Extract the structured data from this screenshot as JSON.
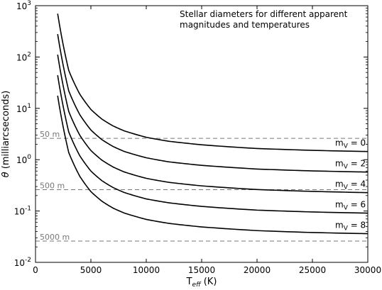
{
  "chart_data": {
    "type": "line",
    "title": "Stellar diameters for different apparent magnitudes and temperatures",
    "title_lines": [
      "Stellar diameters for different apparent",
      "magnitudes and temperatures"
    ],
    "xlabel": "T_eff (K)",
    "ylabel": "θ (milliarcseconds)",
    "xlim": [
      0,
      30000
    ],
    "ylim": [
      0.01,
      1000
    ],
    "yscale": "log",
    "grid": false,
    "legend": "none",
    "x_ticks": [
      0,
      5000,
      10000,
      15000,
      20000,
      25000,
      30000
    ],
    "y_ticks": [
      {
        "value": 0.01,
        "base": "10",
        "exp": "-2"
      },
      {
        "value": 0.1,
        "base": "10",
        "exp": "-1"
      },
      {
        "value": 1,
        "base": "10",
        "exp": "0"
      },
      {
        "value": 10,
        "base": "10",
        "exp": "1"
      },
      {
        "value": 100,
        "base": "10",
        "exp": "2"
      },
      {
        "value": 1000,
        "base": "10",
        "exp": "3"
      }
    ],
    "series": [
      {
        "name": "mV = 0",
        "label_main": "m",
        "label_sub": "V",
        "label_rest": " = 0",
        "mag": 0,
        "x": [
          2000,
          3000,
          4000,
          5000,
          6000,
          7000,
          8000,
          10000,
          12000,
          15000,
          20000,
          25000,
          30000
        ],
        "y": [
          700,
          55,
          18.9,
          9.53,
          6.16,
          4.55,
          3.65,
          2.73,
          2.29,
          1.95,
          1.65,
          1.52,
          1.44
        ]
      },
      {
        "name": "mV = 2",
        "label_main": "m",
        "label_sub": "V",
        "label_rest": " = 2",
        "mag": 2,
        "x": [
          2000,
          3000,
          4000,
          5000,
          6000,
          7000,
          8000,
          10000,
          12000,
          15000,
          20000,
          25000,
          30000
        ],
        "y": [
          279,
          21.9,
          7.52,
          3.79,
          2.45,
          1.81,
          1.45,
          1.09,
          0.91,
          0.776,
          0.657,
          0.604,
          0.574
        ]
      },
      {
        "name": "mV = 4",
        "label_main": "m",
        "label_sub": "V",
        "label_rest": " = 4",
        "mag": 4,
        "x": [
          2000,
          3000,
          4000,
          5000,
          6000,
          7000,
          8000,
          10000,
          12000,
          15000,
          20000,
          25000,
          30000
        ],
        "y": [
          111,
          8.72,
          2.99,
          1.51,
          0.977,
          0.721,
          0.578,
          0.433,
          0.363,
          0.309,
          0.262,
          0.241,
          0.228
        ]
      },
      {
        "name": "mV = 6",
        "label_main": "m",
        "label_sub": "V",
        "label_rest": " = 6",
        "mag": 6,
        "x": [
          2000,
          3000,
          4000,
          5000,
          6000,
          7000,
          8000,
          10000,
          12000,
          15000,
          20000,
          25000,
          30000
        ],
        "y": [
          44.2,
          3.47,
          1.19,
          0.601,
          0.389,
          0.287,
          0.23,
          0.172,
          0.145,
          0.123,
          0.104,
          0.0958,
          0.0909
        ]
      },
      {
        "name": "mV = 8",
        "label_main": "m",
        "label_sub": "V",
        "label_rest": " = 8",
        "mag": 8,
        "x": [
          2000,
          3000,
          4000,
          5000,
          6000,
          7000,
          8000,
          10000,
          12000,
          15000,
          20000,
          25000,
          30000
        ],
        "y": [
          17.6,
          1.38,
          0.474,
          0.239,
          0.155,
          0.114,
          0.0916,
          0.0686,
          0.0576,
          0.049,
          0.0415,
          0.0381,
          0.0362
        ]
      }
    ],
    "reference_lines": [
      {
        "label": "50 m",
        "y": 2.6,
        "color": "#777777",
        "style": "dashed"
      },
      {
        "label": "500 m",
        "y": 0.26,
        "color": "#777777",
        "style": "dashed"
      },
      {
        "label": "5000 m",
        "y": 0.026,
        "color": "#777777",
        "style": "dashed"
      }
    ]
  }
}
